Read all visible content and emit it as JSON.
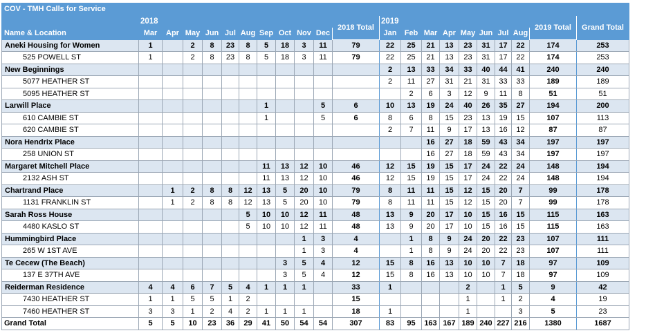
{
  "title": "COV - TMH Calls for Service",
  "row_header_label": "Name & Location",
  "year_labels": {
    "y2018": "2018",
    "y2019": "2019"
  },
  "columns": [
    "Mar",
    "Apr",
    "May",
    "Jun",
    "Jul",
    "Aug",
    "Sep",
    "Oct",
    "Nov",
    "Dec",
    "2018 Total",
    "Jan",
    "Feb",
    "Mar",
    "Apr",
    "May",
    "Jun",
    "Jul",
    "Aug",
    "2019 Total",
    "Grand Total"
  ],
  "rows": [
    {
      "type": "loc",
      "label": "Aneki Housing for Women",
      "values": [
        "1",
        "",
        "2",
        "8",
        "23",
        "8",
        "5",
        "18",
        "3",
        "11",
        "79",
        "22",
        "25",
        "21",
        "13",
        "23",
        "31",
        "17",
        "22",
        "174",
        "253"
      ]
    },
    {
      "type": "addr",
      "label": "525 POWELL ST",
      "values": [
        "1",
        "",
        "2",
        "8",
        "23",
        "8",
        "5",
        "18",
        "3",
        "11",
        "79",
        "22",
        "25",
        "21",
        "13",
        "23",
        "31",
        "17",
        "22",
        "174",
        "253"
      ]
    },
    {
      "type": "loc",
      "label": "New Beginnings",
      "values": [
        "",
        "",
        "",
        "",
        "",
        "",
        "",
        "",
        "",
        "",
        "",
        "2",
        "13",
        "33",
        "34",
        "33",
        "40",
        "44",
        "41",
        "240",
        "240"
      ]
    },
    {
      "type": "addr",
      "label": "5077 HEATHER ST",
      "values": [
        "",
        "",
        "",
        "",
        "",
        "",
        "",
        "",
        "",
        "",
        "",
        "2",
        "11",
        "27",
        "31",
        "21",
        "31",
        "33",
        "33",
        "189",
        "189"
      ]
    },
    {
      "type": "addr",
      "label": "5095 HEATHER ST",
      "values": [
        "",
        "",
        "",
        "",
        "",
        "",
        "",
        "",
        "",
        "",
        "",
        "",
        "2",
        "6",
        "3",
        "12",
        "9",
        "11",
        "8",
        "51",
        "51"
      ]
    },
    {
      "type": "loc",
      "label": "Larwill Place",
      "values": [
        "",
        "",
        "",
        "",
        "",
        "",
        "1",
        "",
        "",
        "5",
        "6",
        "10",
        "13",
        "19",
        "24",
        "40",
        "26",
        "35",
        "27",
        "194",
        "200"
      ]
    },
    {
      "type": "addr",
      "label": "610 CAMBIE ST",
      "values": [
        "",
        "",
        "",
        "",
        "",
        "",
        "1",
        "",
        "",
        "5",
        "6",
        "8",
        "6",
        "8",
        "15",
        "23",
        "13",
        "19",
        "15",
        "107",
        "113"
      ]
    },
    {
      "type": "addr",
      "label": "620 CAMBIE ST",
      "values": [
        "",
        "",
        "",
        "",
        "",
        "",
        "",
        "",
        "",
        "",
        "",
        "2",
        "7",
        "11",
        "9",
        "17",
        "13",
        "16",
        "12",
        "87",
        "87"
      ]
    },
    {
      "type": "loc",
      "label": "Nora Hendrix Place",
      "values": [
        "",
        "",
        "",
        "",
        "",
        "",
        "",
        "",
        "",
        "",
        "",
        "",
        "",
        "16",
        "27",
        "18",
        "59",
        "43",
        "34",
        "197",
        "197"
      ]
    },
    {
      "type": "addr",
      "label": "258 UNION ST",
      "values": [
        "",
        "",
        "",
        "",
        "",
        "",
        "",
        "",
        "",
        "",
        "",
        "",
        "",
        "16",
        "27",
        "18",
        "59",
        "43",
        "34",
        "197",
        "197"
      ]
    },
    {
      "type": "loc",
      "label": "Margaret Mitchell Place",
      "values": [
        "",
        "",
        "",
        "",
        "",
        "",
        "11",
        "13",
        "12",
        "10",
        "46",
        "12",
        "15",
        "19",
        "15",
        "17",
        "24",
        "22",
        "24",
        "148",
        "194"
      ]
    },
    {
      "type": "addr",
      "label": "2132 ASH ST",
      "values": [
        "",
        "",
        "",
        "",
        "",
        "",
        "11",
        "13",
        "12",
        "10",
        "46",
        "12",
        "15",
        "19",
        "15",
        "17",
        "24",
        "22",
        "24",
        "148",
        "194"
      ]
    },
    {
      "type": "loc",
      "label": "Chartrand Place",
      "values": [
        "",
        "1",
        "2",
        "8",
        "8",
        "12",
        "13",
        "5",
        "20",
        "10",
        "79",
        "8",
        "11",
        "11",
        "15",
        "12",
        "15",
        "20",
        "7",
        "99",
        "178"
      ]
    },
    {
      "type": "addr",
      "label": "1131 FRANKLIN ST",
      "values": [
        "",
        "1",
        "2",
        "8",
        "8",
        "12",
        "13",
        "5",
        "20",
        "10",
        "79",
        "8",
        "11",
        "11",
        "15",
        "12",
        "15",
        "20",
        "7",
        "99",
        "178"
      ]
    },
    {
      "type": "loc",
      "label": "Sarah Ross House",
      "values": [
        "",
        "",
        "",
        "",
        "",
        "5",
        "10",
        "10",
        "12",
        "11",
        "48",
        "13",
        "9",
        "20",
        "17",
        "10",
        "15",
        "16",
        "15",
        "115",
        "163"
      ]
    },
    {
      "type": "addr",
      "label": "4480 KASLO ST",
      "values": [
        "",
        "",
        "",
        "",
        "",
        "5",
        "10",
        "10",
        "12",
        "11",
        "48",
        "13",
        "9",
        "20",
        "17",
        "10",
        "15",
        "16",
        "15",
        "115",
        "163"
      ]
    },
    {
      "type": "loc",
      "label": "Hummingbird Place",
      "values": [
        "",
        "",
        "",
        "",
        "",
        "",
        "",
        "",
        "1",
        "3",
        "4",
        "",
        "1",
        "8",
        "9",
        "24",
        "20",
        "22",
        "23",
        "107",
        "111"
      ]
    },
    {
      "type": "addr",
      "label": "265 W 1ST AVE",
      "values": [
        "",
        "",
        "",
        "",
        "",
        "",
        "",
        "",
        "1",
        "3",
        "4",
        "",
        "1",
        "8",
        "9",
        "24",
        "20",
        "22",
        "23",
        "107",
        "111"
      ]
    },
    {
      "type": "loc",
      "label": "Te Cecew (The Beach)",
      "values": [
        "",
        "",
        "",
        "",
        "",
        "",
        "",
        "3",
        "5",
        "4",
        "12",
        "15",
        "8",
        "16",
        "13",
        "10",
        "10",
        "7",
        "18",
        "97",
        "109"
      ]
    },
    {
      "type": "addr",
      "label": "137 E 37TH AVE",
      "values": [
        "",
        "",
        "",
        "",
        "",
        "",
        "",
        "3",
        "5",
        "4",
        "12",
        "15",
        "8",
        "16",
        "13",
        "10",
        "10",
        "7",
        "18",
        "97",
        "109"
      ]
    },
    {
      "type": "loc",
      "label": "Reiderman Residence",
      "values": [
        "4",
        "4",
        "6",
        "7",
        "5",
        "4",
        "1",
        "1",
        "1",
        "",
        "33",
        "1",
        "",
        "",
        "",
        "2",
        "",
        "1",
        "5",
        "9",
        "42"
      ]
    },
    {
      "type": "addr",
      "label": "7430 HEATHER ST",
      "values": [
        "1",
        "1",
        "5",
        "5",
        "1",
        "2",
        "",
        "",
        "",
        "",
        "15",
        "",
        "",
        "",
        "",
        "1",
        "",
        "1",
        "2",
        "4",
        "19"
      ]
    },
    {
      "type": "addr",
      "label": "7460 HEATHER ST",
      "values": [
        "3",
        "3",
        "1",
        "2",
        "4",
        "2",
        "1",
        "1",
        "1",
        "",
        "18",
        "1",
        "",
        "",
        "",
        "1",
        "",
        "",
        "3",
        "5",
        "23"
      ]
    }
  ],
  "grand_total": {
    "label": "Grand Total",
    "values": [
      "5",
      "5",
      "10",
      "23",
      "36",
      "29",
      "41",
      "50",
      "54",
      "54",
      "307",
      "83",
      "95",
      "163",
      "167",
      "189",
      "240",
      "227",
      "216",
      "1380",
      "1687"
    ]
  }
}
